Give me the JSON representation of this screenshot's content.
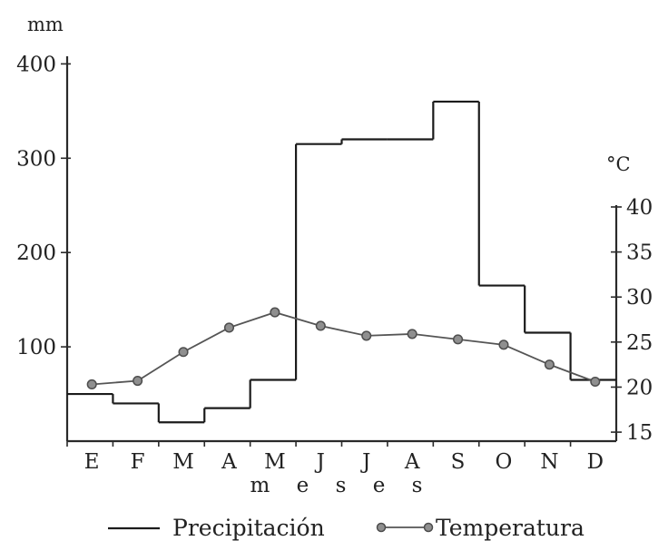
{
  "chart_data": {
    "type": "line",
    "title": "",
    "x_label": "m e s e s",
    "categories": [
      "E",
      "F",
      "M",
      "A",
      "M",
      "J",
      "J",
      "A",
      "S",
      "O",
      "N",
      "D"
    ],
    "left_axis": {
      "unit": "mm",
      "ticks": [
        "100",
        "200",
        "300",
        "400"
      ],
      "tick_values": [
        100,
        200,
        300,
        400
      ],
      "range": [
        0,
        410
      ]
    },
    "right_axis": {
      "unit": "°C",
      "ticks": [
        "15",
        "20",
        "25",
        "30",
        "35",
        "40"
      ],
      "tick_values": [
        15,
        20,
        25,
        30,
        35,
        40
      ],
      "range": [
        14,
        40
      ]
    },
    "series": [
      {
        "name": "Precipitación",
        "style": "step",
        "axis": "left",
        "values": [
          50,
          40,
          20,
          35,
          65,
          315,
          320,
          320,
          360,
          165,
          115,
          65
        ]
      },
      {
        "name": "Temperatura",
        "style": "line-markers",
        "axis": "right",
        "values": [
          20.3,
          20.7,
          23.9,
          26.6,
          28.3,
          26.8,
          25.7,
          25.9,
          25.3,
          24.7,
          22.5,
          20.6
        ]
      }
    ],
    "legend": {
      "placement": "bottom",
      "entries": [
        "Precipitación",
        "Temperatura"
      ]
    },
    "colors": {
      "ink": "#1b1b1b",
      "marker": "#8f8f8f"
    }
  }
}
